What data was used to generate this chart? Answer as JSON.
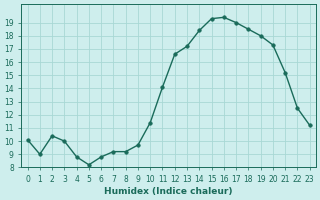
{
  "x": [
    0,
    1,
    2,
    3,
    4,
    5,
    6,
    7,
    8,
    9,
    10,
    11,
    12,
    13,
    14,
    15,
    16,
    17,
    18,
    19,
    20,
    21,
    22,
    23
  ],
  "y": [
    10.1,
    9.0,
    10.4,
    10.0,
    8.8,
    8.2,
    8.8,
    9.2,
    9.2,
    9.7,
    11.4,
    14.1,
    16.6,
    17.2,
    18.4,
    19.3,
    19.4,
    19.0,
    18.5,
    18.0,
    17.3,
    15.2,
    12.5,
    11.2
  ],
  "xlabel": "Humidex (Indice chaleur)",
  "ylim": [
    8,
    20
  ],
  "xlim_min": -0.5,
  "xlim_max": 23.5,
  "yticks": [
    8,
    9,
    10,
    11,
    12,
    13,
    14,
    15,
    16,
    17,
    18,
    19
  ],
  "xticks": [
    0,
    1,
    2,
    3,
    4,
    5,
    6,
    7,
    8,
    9,
    10,
    11,
    12,
    13,
    14,
    15,
    16,
    17,
    18,
    19,
    20,
    21,
    22,
    23
  ],
  "line_color": "#1a6b5a",
  "marker_color": "#1a6b5a",
  "bg_color": "#ceeeed",
  "grid_color": "#a8d8d5",
  "tick_label_color": "#1a6b5a",
  "xlabel_color": "#1a6b5a"
}
